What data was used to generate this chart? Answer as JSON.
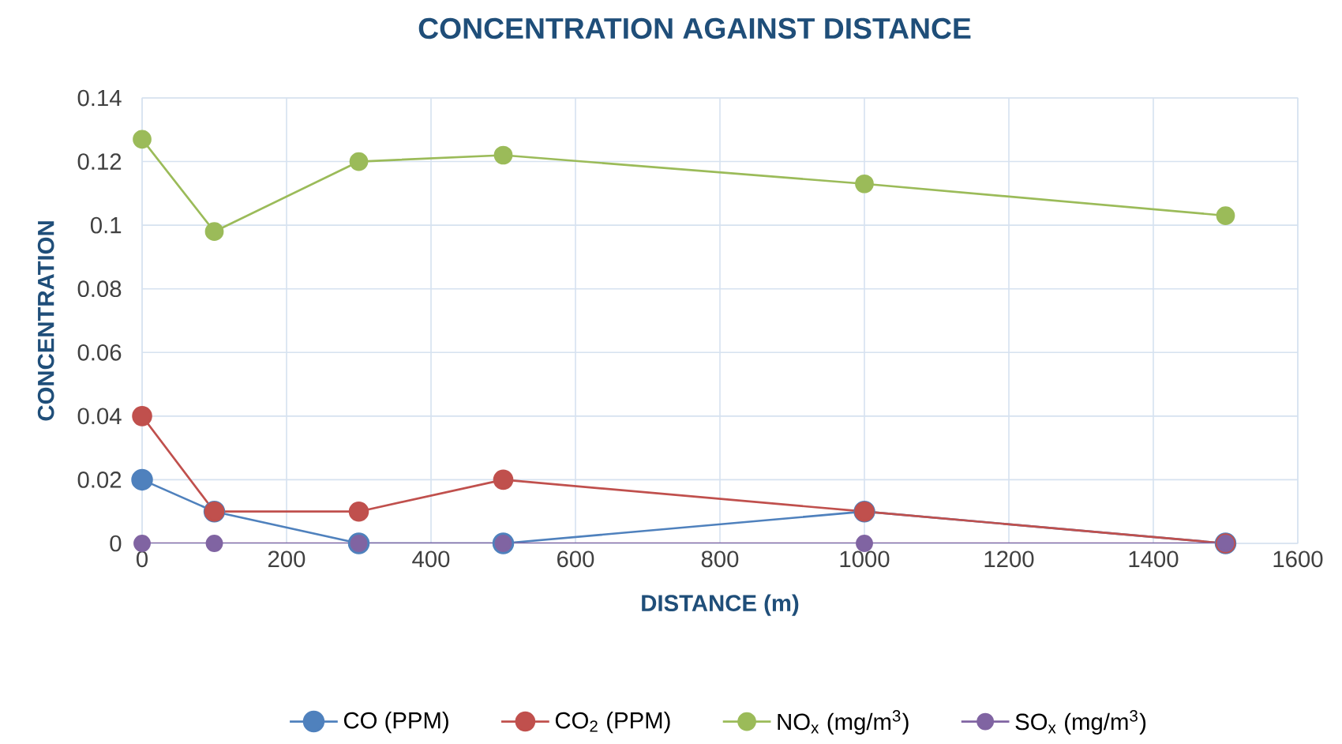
{
  "chart_data": {
    "type": "line",
    "title": "CONCENTRATION AGAINST DISTANCE",
    "xlabel": "DISTANCE (m)",
    "ylabel": "CONCENTRATION",
    "x": [
      0,
      100,
      300,
      500,
      1000,
      1500
    ],
    "series": [
      {
        "name": "CO (PPM)",
        "color": "#4f81bd",
        "values": [
          0.02,
          0.01,
          0,
          0,
          0.01,
          0
        ]
      },
      {
        "name": "CO$_{2}$ (PPM)",
        "color": "#c0504d",
        "values": [
          0.04,
          0.01,
          0.01,
          0.02,
          0.01,
          0
        ]
      },
      {
        "name": "NO$_{x}$ (mg/m$^{3}$)",
        "color": "#9bbb59",
        "values": [
          0.127,
          0.098,
          0.12,
          0.122,
          0.113,
          0.103
        ]
      },
      {
        "name": "SO$_{x}$ (mg/m$^{3}$)",
        "color": "#8064a2",
        "values": [
          0,
          0,
          0,
          0,
          0,
          0
        ]
      }
    ],
    "xlim": [
      0,
      1600
    ],
    "xticks": [
      0,
      200,
      400,
      600,
      800,
      1000,
      1200,
      1400,
      1600
    ],
    "ylim": [
      0,
      0.14
    ],
    "yticks": [
      0,
      0.02,
      0.04,
      0.06,
      0.08,
      0.1,
      0.12,
      0.14
    ],
    "grid": true,
    "legend": "bottom",
    "marker": "circle",
    "line_style": "solid"
  }
}
